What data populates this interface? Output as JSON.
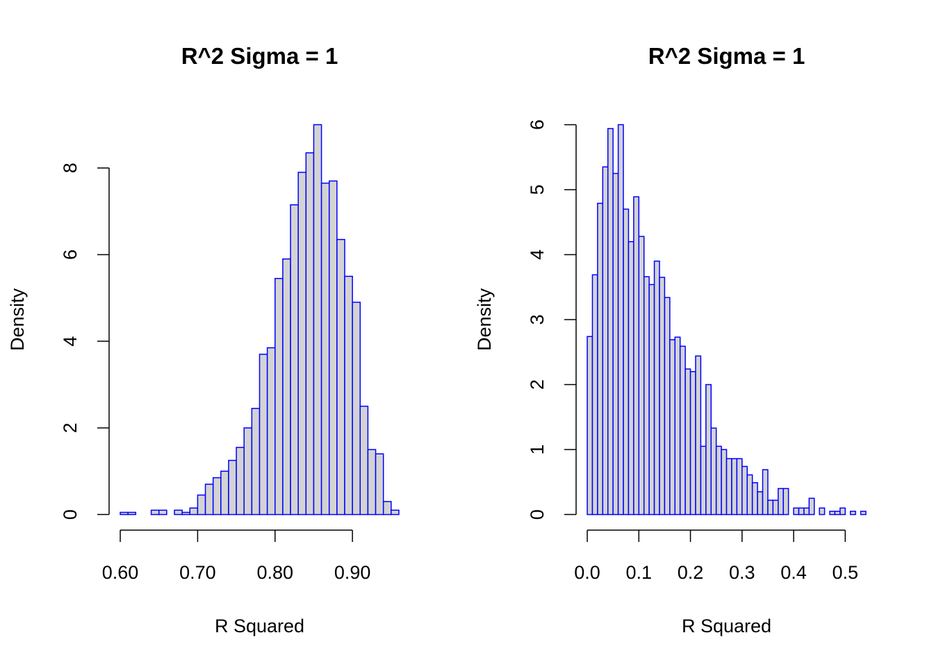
{
  "chart_data": [
    {
      "type": "histogram",
      "title": "R^2 Sigma = 1",
      "x_label": "R Squared",
      "y_label": "Density",
      "bins": [
        0.6,
        0.61,
        0.62,
        0.63,
        0.64,
        0.65,
        0.66,
        0.67,
        0.68,
        0.69,
        0.7,
        0.71,
        0.72,
        0.73,
        0.74,
        0.75,
        0.76,
        0.77,
        0.78,
        0.79,
        0.8,
        0.81,
        0.82,
        0.83,
        0.84,
        0.85,
        0.86,
        0.87,
        0.88,
        0.89,
        0.9,
        0.91,
        0.92,
        0.93,
        0.94,
        0.95,
        0.96
      ],
      "values": [
        0.05,
        0.05,
        0,
        0,
        0.1,
        0.1,
        0,
        0.1,
        0.05,
        0.15,
        0.45,
        0.7,
        0.85,
        1.0,
        1.25,
        1.55,
        2.0,
        2.45,
        3.7,
        3.85,
        5.45,
        5.9,
        7.15,
        7.9,
        8.35,
        9.0,
        7.65,
        7.7,
        6.35,
        5.5,
        4.9,
        2.5,
        1.5,
        1.4,
        0.3,
        0.1
      ],
      "fill": "#d3d3d3",
      "edge_color": "#0000ff",
      "xlim": [
        0.5856,
        0.9744
      ],
      "ylim": [
        -0.36,
        9.36
      ],
      "xticks": [
        {
          "value": 0.6,
          "label": "0.60"
        },
        {
          "value": 0.7,
          "label": "0.70"
        },
        {
          "value": 0.8,
          "label": "0.80"
        },
        {
          "value": 0.9,
          "label": "0.90"
        }
      ],
      "yticks": [
        0,
        2,
        4,
        6,
        8
      ]
    },
    {
      "type": "histogram",
      "title": "R^2 Sigma = 1",
      "x_label": "R Squared",
      "y_label": "Density",
      "bins": [
        0,
        0.01,
        0.02,
        0.03,
        0.04,
        0.05,
        0.06,
        0.07,
        0.08,
        0.09,
        0.1,
        0.11,
        0.12,
        0.13,
        0.14,
        0.15,
        0.16,
        0.17,
        0.18,
        0.19,
        0.2,
        0.21,
        0.22,
        0.23,
        0.24,
        0.25,
        0.26,
        0.27,
        0.28,
        0.29,
        0.3,
        0.31,
        0.32,
        0.33,
        0.34,
        0.35,
        0.36,
        0.37,
        0.38,
        0.39,
        0.4,
        0.41,
        0.42,
        0.43,
        0.44,
        0.45,
        0.46,
        0.47,
        0.48,
        0.49,
        0.5,
        0.51,
        0.52,
        0.53,
        0.54
      ],
      "values": [
        2.74,
        3.69,
        4.79,
        5.35,
        5.94,
        5.25,
        6.0,
        4.7,
        4.2,
        4.89,
        4.28,
        3.66,
        3.54,
        3.9,
        3.65,
        3.34,
        2.69,
        2.73,
        2.59,
        2.24,
        2.2,
        2.44,
        1.05,
        2.0,
        1.33,
        1.05,
        1.0,
        0.86,
        0.86,
        0.86,
        0.74,
        0.61,
        0.49,
        0.35,
        0.69,
        0.22,
        0.22,
        0.4,
        0.4,
        0,
        0.1,
        0.1,
        0.1,
        0.25,
        0,
        0.1,
        0,
        0.05,
        0.05,
        0.1,
        0,
        0.05,
        0,
        0.05
      ],
      "fill": "#d3d3d3",
      "edge_color": "#0000ff",
      "xlim": [
        -0.0216,
        0.5616
      ],
      "ylim": [
        -0.24,
        6.24
      ],
      "xticks": [
        {
          "value": 0,
          "label": "0.0"
        },
        0.1,
        0.2,
        0.3,
        0.4,
        0.5
      ],
      "yticks": [
        0,
        1,
        2,
        3,
        4,
        5,
        6
      ]
    }
  ]
}
